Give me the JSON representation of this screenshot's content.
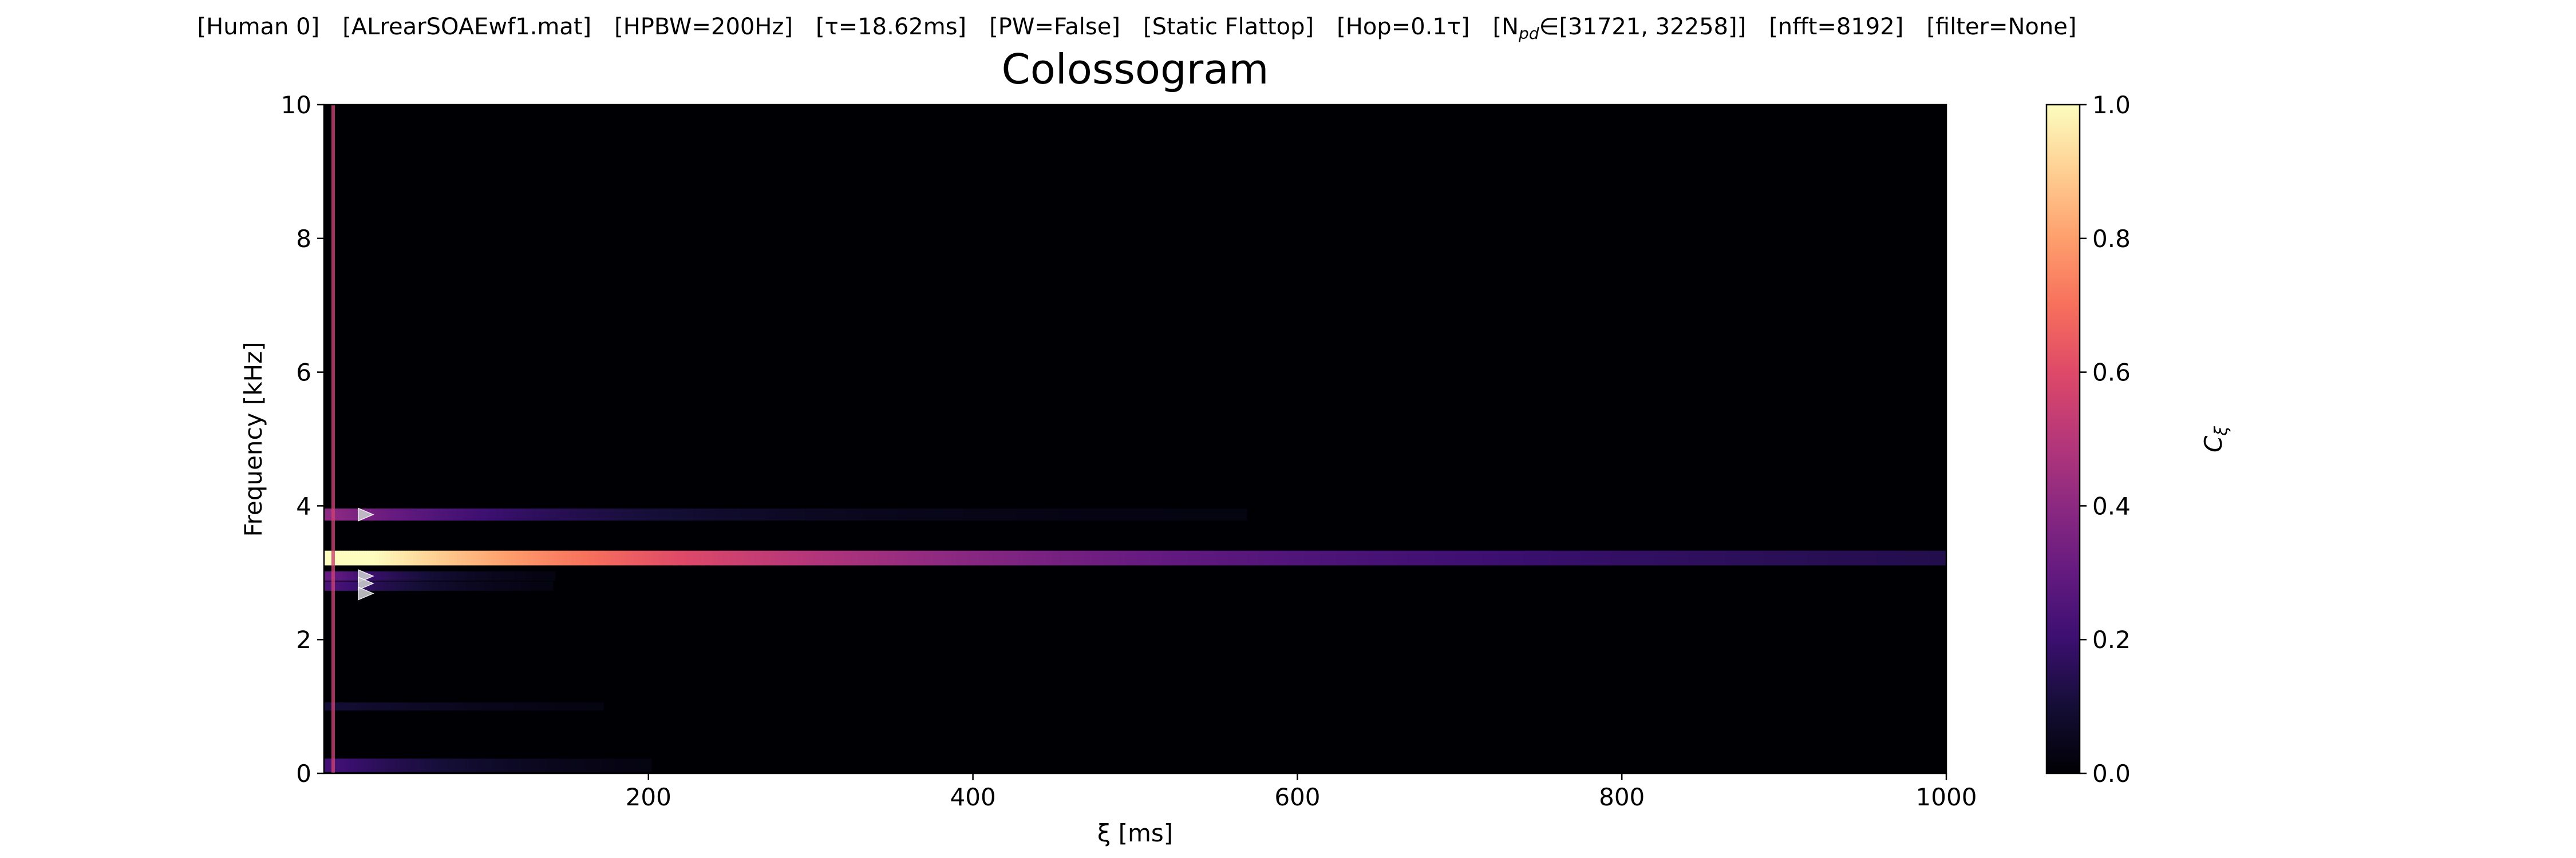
{
  "chart_data": {
    "type": "heatmap",
    "title": "Colossogram",
    "suptitle_parts": [
      {
        "text": "[Human 0]"
      },
      {
        "text": "[ALrearSOAEwf1.mat]"
      },
      {
        "text": "[HPBW=200Hz]"
      },
      {
        "text": "[τ=18.62ms]"
      },
      {
        "text": "[PW=False]"
      },
      {
        "text": "[Static Flattop]"
      },
      {
        "text": "[Hop=0.1τ]"
      },
      {
        "text": "[N",
        "sub": "pd",
        "tail": "∈[31721, 32258]]"
      },
      {
        "text": "[nfft=8192]"
      },
      {
        "text": "[filter=None]"
      }
    ],
    "xlabel": "ξ [ms]",
    "ylabel": "Frequency [kHz]",
    "xlim": [
      0,
      1000
    ],
    "ylim": [
      0,
      10
    ],
    "xticks": [
      "200",
      "400",
      "600",
      "800",
      "1000"
    ],
    "yticks": [
      "0",
      "2",
      "4",
      "6",
      "8",
      "10"
    ],
    "colormap": "magma",
    "colorbar": {
      "label_main": "C",
      "label_sub": "ξ",
      "range": [
        0,
        1
      ],
      "ticks": [
        "0.0",
        "0.2",
        "0.4",
        "0.6",
        "0.8",
        "1.0"
      ]
    },
    "bands": [
      {
        "freq_khz": 3.22,
        "half_width_khz": 0.11,
        "start_value": 1.0,
        "peak_span_ms": 30,
        "decay_ms": 330,
        "floor": 0.09
      },
      {
        "freq_khz": 3.87,
        "half_width_khz": 0.09,
        "start_value": 0.4,
        "peak_span_ms": 5,
        "decay_ms": 130,
        "floor": 0.02
      },
      {
        "freq_khz": 2.95,
        "half_width_khz": 0.07,
        "start_value": 0.3,
        "peak_span_ms": 5,
        "decay_ms": 55,
        "floor": 0.0
      },
      {
        "freq_khz": 2.8,
        "half_width_khz": 0.07,
        "start_value": 0.24,
        "peak_span_ms": 5,
        "decay_ms": 60,
        "floor": 0.0
      },
      {
        "freq_khz": 1.0,
        "half_width_khz": 0.06,
        "start_value": 0.1,
        "peak_span_ms": 5,
        "decay_ms": 120,
        "floor": 0.0
      },
      {
        "freq_khz": 0.12,
        "half_width_khz": 0.1,
        "start_value": 0.22,
        "peak_span_ms": 5,
        "decay_ms": 90,
        "floor": 0.0
      }
    ],
    "markers": [
      {
        "xi_ms": 25,
        "freq_khz": 3.87,
        "symbol": "triangle-right"
      },
      {
        "xi_ms": 25,
        "freq_khz": 2.95,
        "symbol": "triangle-right"
      },
      {
        "xi_ms": 25,
        "freq_khz": 2.84,
        "symbol": "triangle-right"
      },
      {
        "xi_ms": 25,
        "freq_khz": 2.69,
        "symbol": "triangle-right"
      }
    ],
    "background_value": 0.02,
    "edge_column": {
      "xi_ms": 6,
      "value": 0.55
    }
  }
}
